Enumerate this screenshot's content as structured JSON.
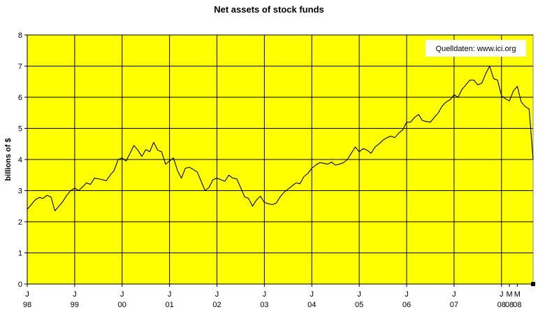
{
  "chart_data": {
    "type": "line",
    "title": "Net assets of stock funds",
    "ylabel": "billions of $",
    "xlabel": "",
    "ylim": [
      0,
      8
    ],
    "yticks": [
      "0",
      "1",
      "2",
      "3",
      "4",
      "5",
      "6",
      "7",
      "8"
    ],
    "x_range_months": [
      0,
      128
    ],
    "xticks": [
      {
        "month": 0,
        "top": "J",
        "bottom": "98"
      },
      {
        "month": 12,
        "top": "J",
        "bottom": "99"
      },
      {
        "month": 24,
        "top": "J",
        "bottom": "00"
      },
      {
        "month": 36,
        "top": "J",
        "bottom": "01"
      },
      {
        "month": 48,
        "top": "J",
        "bottom": "02"
      },
      {
        "month": 60,
        "top": "J",
        "bottom": "03"
      },
      {
        "month": 72,
        "top": "J",
        "bottom": "04"
      },
      {
        "month": 84,
        "top": "J",
        "bottom": "05"
      },
      {
        "month": 96,
        "top": "J",
        "bottom": "06"
      },
      {
        "month": 108,
        "top": "J",
        "bottom": "07"
      },
      {
        "month": 120,
        "top": "J",
        "bottom": "08"
      },
      {
        "month": 122,
        "top": "M",
        "bottom": "08"
      },
      {
        "month": 124,
        "top": "M",
        "bottom": "08"
      }
    ],
    "annotation": "Quelldaten: www.ici.org",
    "grid": true,
    "background_color": "#ffff00",
    "line_color": "#000000",
    "series": [
      {
        "values": [
          2.4,
          2.55,
          2.7,
          2.78,
          2.75,
          2.85,
          2.8,
          2.35,
          2.5,
          2.65,
          2.85,
          3.0,
          3.08,
          3.0,
          3.12,
          3.25,
          3.2,
          3.4,
          3.38,
          3.35,
          3.32,
          3.5,
          3.65,
          4.0,
          4.05,
          3.95,
          4.2,
          4.45,
          4.3,
          4.1,
          4.32,
          4.25,
          4.55,
          4.3,
          4.25,
          3.85,
          3.95,
          4.05,
          3.65,
          3.4,
          3.72,
          3.75,
          3.68,
          3.6,
          3.3,
          3.0,
          3.1,
          3.35,
          3.4,
          3.35,
          3.3,
          3.5,
          3.4,
          3.38,
          3.1,
          2.8,
          2.75,
          2.5,
          2.7,
          2.82,
          2.62,
          2.58,
          2.55,
          2.6,
          2.8,
          2.95,
          3.05,
          3.15,
          3.25,
          3.22,
          3.45,
          3.55,
          3.72,
          3.82,
          3.9,
          3.88,
          3.85,
          3.92,
          3.82,
          3.85,
          3.9,
          4.0,
          4.2,
          4.4,
          4.25,
          4.35,
          4.3,
          4.2,
          4.4,
          4.5,
          4.62,
          4.7,
          4.75,
          4.7,
          4.85,
          4.95,
          5.2,
          5.2,
          5.35,
          5.45,
          5.25,
          5.22,
          5.2,
          5.35,
          5.5,
          5.72,
          5.85,
          5.92,
          6.08,
          6.0,
          6.25,
          6.4,
          6.55,
          6.55,
          6.4,
          6.45,
          6.75,
          7.0,
          6.6,
          6.55,
          6.05,
          5.95,
          5.88,
          6.2,
          6.35,
          5.85,
          5.7,
          5.62,
          4.0
        ]
      }
    ]
  }
}
